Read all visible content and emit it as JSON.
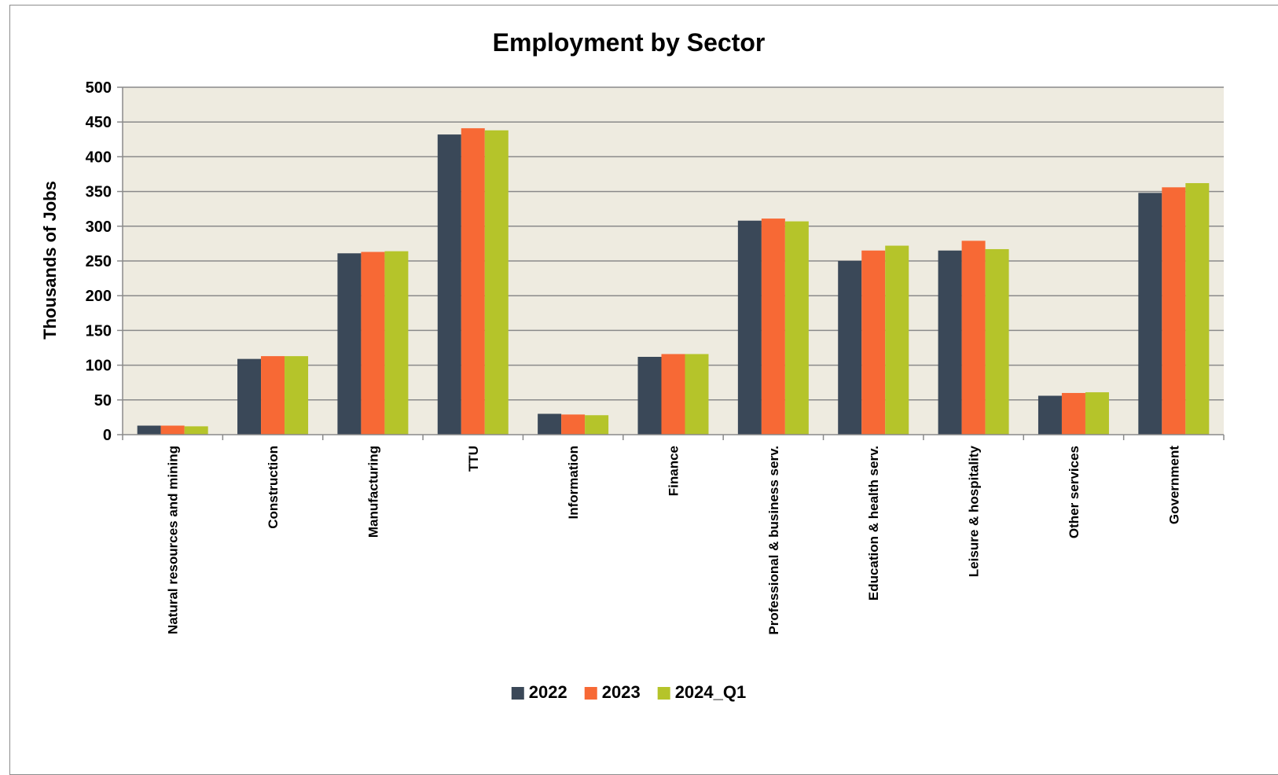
{
  "chart_data": {
    "type": "bar",
    "title": "Employment by Sector",
    "xlabel": "",
    "ylabel": "Thousands of Jobs",
    "ylim": [
      0,
      500
    ],
    "yticks": [
      0,
      50,
      100,
      150,
      200,
      250,
      300,
      350,
      400,
      450,
      500
    ],
    "grid": true,
    "legend_position": "bottom",
    "plot_background": "#EEEBE0",
    "categories": [
      "Natural resources and mining",
      "Construction",
      "Manufacturing",
      "TTU",
      "Information",
      "Finance",
      "Professional & business serv.",
      "Education & health serv.",
      "Leisure & hospitality",
      "Other services",
      "Government"
    ],
    "series": [
      {
        "name": "2022",
        "color": "#3A4858",
        "values": [
          13,
          109,
          261,
          432,
          30,
          112,
          308,
          250,
          265,
          56,
          348
        ]
      },
      {
        "name": "2023",
        "color": "#F76935",
        "values": [
          13,
          113,
          263,
          441,
          29,
          116,
          311,
          265,
          279,
          60,
          356
        ]
      },
      {
        "name": "2024_Q1",
        "color": "#B5C42A",
        "values": [
          12,
          113,
          264,
          438,
          28,
          116,
          307,
          272,
          267,
          61,
          362
        ]
      }
    ]
  }
}
